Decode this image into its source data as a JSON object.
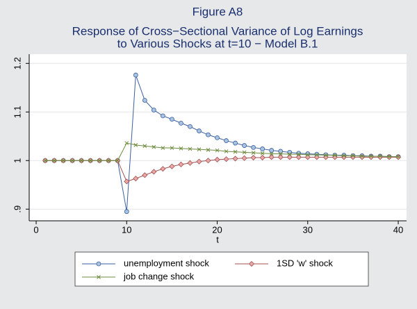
{
  "chart_data": {
    "type": "line",
    "title": "Figure A8",
    "subtitle": [
      "Response of Cross−Sectional Variance of Log Earnings",
      "to Various Shocks at t=10  − Model B.1"
    ],
    "x_label": "t",
    "x": [
      1,
      2,
      3,
      4,
      5,
      6,
      7,
      8,
      9,
      10,
      11,
      12,
      13,
      14,
      15,
      16,
      17,
      18,
      19,
      20,
      21,
      22,
      23,
      24,
      25,
      26,
      27,
      28,
      29,
      30,
      31,
      32,
      33,
      34,
      35,
      36,
      37,
      38,
      39,
      40
    ],
    "xlim": [
      -0.77,
      40.92
    ],
    "xticks": [
      0,
      10,
      20,
      30,
      40
    ],
    "ylim": [
      0.876,
      1.219
    ],
    "yticks": [
      {
        "value": 0.9,
        "label": ".9"
      },
      1,
      1.1,
      1.2
    ],
    "grid": true,
    "legend": "bottom",
    "series": [
      {
        "name": "unemployment shock",
        "color": "#3b5fa0",
        "marker": "circle",
        "marker_fill": "#a9c4e0",
        "values": [
          1,
          1,
          1,
          1,
          1,
          1,
          1,
          1,
          1,
          0.895,
          1.176,
          1.124,
          1.104,
          1.092,
          1.085,
          1.077,
          1.07,
          1.061,
          1.053,
          1.047,
          1.041,
          1.036,
          1.031,
          1.027,
          1.024,
          1.021,
          1.019,
          1.017,
          1.015,
          1.014,
          1.013,
          1.012,
          1.011,
          1.011,
          1.01,
          1.01,
          1.009,
          1.009,
          1.008,
          1.008
        ]
      },
      {
        "name": "1SD 'w' shock",
        "color": "#a0504f",
        "marker": "diamond",
        "marker_fill": "#e8a9a8",
        "values": [
          1,
          1,
          1,
          1,
          1,
          1,
          1,
          1,
          1,
          0.957,
          0.963,
          0.97,
          0.977,
          0.983,
          0.988,
          0.992,
          0.995,
          0.998,
          1.0,
          1.002,
          1.003,
          1.004,
          1.005,
          1.006,
          1.006,
          1.007,
          1.007,
          1.007,
          1.007,
          1.007,
          1.007,
          1.007,
          1.007,
          1.007,
          1.007,
          1.007,
          1.007,
          1.007,
          1.007,
          1.007
        ]
      },
      {
        "name": "job change shock",
        "color": "#6d8b3d",
        "marker": "x",
        "marker_fill": "#6d8b3d",
        "values": [
          1,
          1,
          1,
          1,
          1,
          1,
          1,
          1,
          1,
          1.036,
          1.032,
          1.03,
          1.028,
          1.026,
          1.026,
          1.025,
          1.024,
          1.023,
          1.022,
          1.021,
          1.019,
          1.018,
          1.017,
          1.016,
          1.015,
          1.014,
          1.014,
          1.013,
          1.013,
          1.012,
          1.012,
          1.011,
          1.011,
          1.01,
          1.01,
          1.009,
          1.009,
          1.009,
          1.008,
          1.008
        ]
      }
    ]
  }
}
